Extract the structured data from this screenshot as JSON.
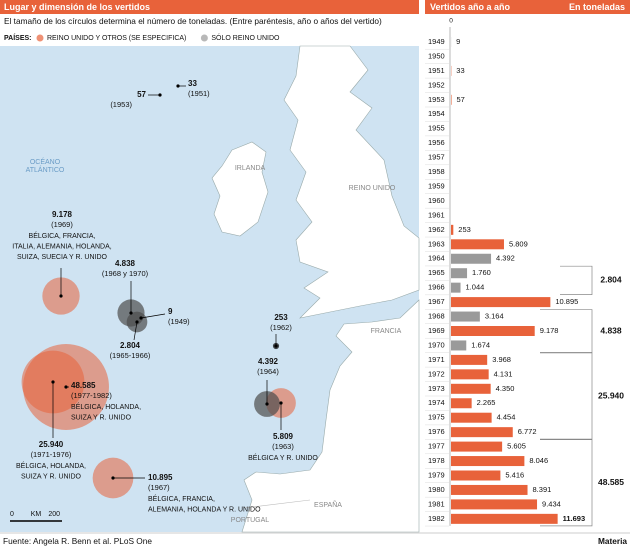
{
  "map": {
    "title": "Lugar y dimensión de los vertidos",
    "subtitle": "El tamaño de los círculos determina el número de toneladas. (Entre paréntesis, año o años del vertido)",
    "legend_label": "PAÍSES:",
    "places": [
      "OCÉANO",
      "ATLÁNTICO",
      "IRLANDA",
      "REINO UNIDO",
      "FRANCIA",
      "ESPAÑA",
      "PORTUGAL"
    ],
    "scale": [
      "0",
      "KM",
      "200"
    ],
    "dumps": [
      {
        "value": 33,
        "label": "33",
        "years": "(1951)",
        "lines": [],
        "color": "#000000"
      },
      {
        "value": 57,
        "label": "57",
        "years": "(1953)",
        "lines": [],
        "color": "#000000"
      },
      {
        "value": 9178,
        "label": "9.178",
        "years": "(1969)",
        "lines": [
          "BÉLGICA, FRANCIA,",
          "ITALIA, ALEMANIA, HOLANDA,",
          "SUIZA, SUECIA Y R. UNIDO"
        ],
        "color": "#e8623a"
      },
      {
        "value": 4838,
        "label": "4.838",
        "years": "(1968 y 1970)",
        "lines": [],
        "color": "#4d4d4d"
      },
      {
        "value": 9,
        "label": "9",
        "years": "(1949)",
        "lines": [],
        "color": "#4d4d4d"
      },
      {
        "value": 2804,
        "label": "2.804",
        "years": "(1965-1966)",
        "lines": [],
        "color": "#4d4d4d"
      },
      {
        "value": 48585,
        "label": "48.585",
        "years": "(1977-1982)",
        "lines": [
          "BÉLGICA, HOLANDA,",
          "SUIZA Y R. UNIDO"
        ],
        "color": "#e8623a"
      },
      {
        "value": 25940,
        "label": "25.940",
        "years": "(1971-1976)",
        "lines": [
          "BÉLGICA, HOLANDA,",
          "SUIZA Y R. UNIDO"
        ],
        "color": "#e8623a"
      },
      {
        "value": 10895,
        "label": "10.895",
        "years": "(1967)",
        "lines": [
          "BÉLGICA, FRANCIA,",
          "ALEMANIA, HOLANDA Y R. UNIDO"
        ],
        "color": "#e8623a"
      },
      {
        "value": 253,
        "label": "253",
        "years": "(1962)",
        "lines": [],
        "color": "#000000"
      },
      {
        "value": 4392,
        "label": "4.392",
        "years": "(1964)",
        "lines": [],
        "color": "#4d4d4d"
      },
      {
        "value": 5809,
        "label": "5.809",
        "years": "(1963)",
        "lines": [
          "BÉLGICA Y R. UNIDO"
        ],
        "color": "#e8623a"
      }
    ]
  },
  "chart_data": {
    "type": "bar",
    "orientation": "horizontal",
    "title": "Vertidos año a año",
    "subtitle": "En toneladas",
    "categories": [
      "1949",
      "1950",
      "1951",
      "1952",
      "1953",
      "1954",
      "1955",
      "1956",
      "1957",
      "1958",
      "1959",
      "1960",
      "1961",
      "1962",
      "1963",
      "1964",
      "1965",
      "1966",
      "1967",
      "1968",
      "1969",
      "1970",
      "1971",
      "1972",
      "1973",
      "1974",
      "1975",
      "1976",
      "1977",
      "1978",
      "1979",
      "1980",
      "1981",
      "1982"
    ],
    "series": [
      {
        "name": "REINO UNIDO Y OTROS (SE ESPECIFICA)",
        "color": "#e8623a",
        "values": [
          null,
          null,
          33,
          null,
          57,
          null,
          null,
          null,
          null,
          null,
          null,
          null,
          null,
          253,
          5809,
          null,
          null,
          null,
          10895,
          null,
          9178,
          null,
          3968,
          4131,
          4350,
          2265,
          4454,
          6772,
          5605,
          8046,
          5416,
          8391,
          9434,
          11693
        ],
        "value_labels": [
          null,
          null,
          "33",
          null,
          "57",
          null,
          null,
          null,
          null,
          null,
          null,
          null,
          null,
          "253",
          "5.809",
          null,
          null,
          null,
          "10.895",
          null,
          "9.178",
          null,
          "3.968",
          "4.131",
          "4.350",
          "2.265",
          "4.454",
          "6.772",
          "5.605",
          "8.046",
          "5.416",
          "8.391",
          "9.434",
          "11.693"
        ]
      },
      {
        "name": "SÓLO REINO UNIDO",
        "color": "#9a9a9a",
        "values": [
          9,
          null,
          null,
          null,
          null,
          null,
          null,
          null,
          null,
          null,
          null,
          null,
          null,
          null,
          null,
          4392,
          1760,
          1044,
          null,
          3164,
          null,
          1674,
          null,
          null,
          null,
          null,
          null,
          null,
          null,
          null,
          null,
          null,
          null,
          null
        ],
        "value_labels": [
          "9",
          null,
          null,
          null,
          null,
          null,
          null,
          null,
          null,
          null,
          null,
          null,
          null,
          null,
          null,
          "4.392",
          "1.760",
          "1.044",
          null,
          "3.164",
          null,
          "1.674",
          null,
          null,
          null,
          null,
          null,
          null,
          null,
          null,
          null,
          null,
          null,
          null
        ]
      }
    ],
    "xlim": [
      0,
      12500
    ],
    "xticks": [
      0
    ],
    "annotations": [
      {
        "value": 2804,
        "label": "2.804"
      },
      {
        "value": 4838,
        "label": "4.838"
      },
      {
        "value": 25940,
        "label": "25.940"
      },
      {
        "value": 48585,
        "label": "48.585"
      }
    ]
  },
  "source": "Fuente: Angela R. Benn et al. PLoS One",
  "brand": "Materia"
}
